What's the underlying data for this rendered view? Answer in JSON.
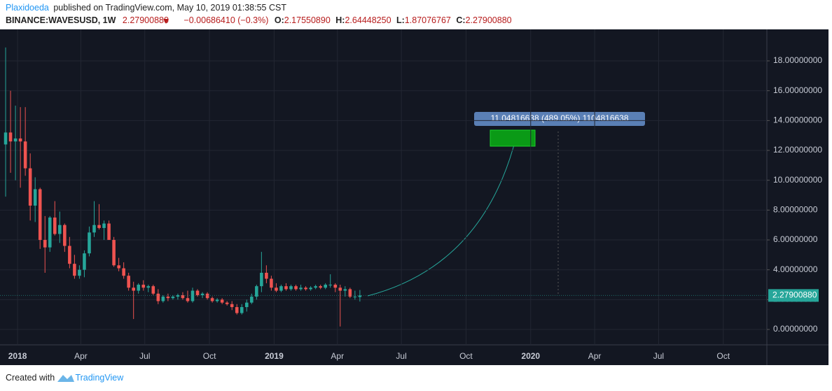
{
  "header": {
    "author": "Plaxidoeda",
    "published": "published on TradingView.com, May 10, 2019 01:38:55 CST",
    "symbol": "BINANCE:WAVESUSD, 1W",
    "price": "2.27900880",
    "change": "−0.00686410 (−0.3%)",
    "o_label": "O:",
    "o": "2.17550890",
    "h_label": "H:",
    "h": "2.64448250",
    "l_label": "L:",
    "l": "1.87076767",
    "c_label": "C:",
    "c": "2.27900880"
  },
  "footer": {
    "created": "Created with",
    "brand": "TradingView"
  },
  "chart_data": {
    "type": "candlestick",
    "up_color": "#26a69a",
    "down_color": "#ef5350",
    "grid": true,
    "xlim": [
      -25,
      1066
    ],
    "ylim": [
      -1.03,
      19.97
    ],
    "xticks": [
      {
        "value": 0,
        "label": "2018"
      },
      {
        "value": 90,
        "label": "Apr"
      },
      {
        "value": 181,
        "label": "Jul"
      },
      {
        "value": 273,
        "label": "Oct"
      },
      {
        "value": 365,
        "label": "2019"
      },
      {
        "value": 455,
        "label": "Apr"
      },
      {
        "value": 546,
        "label": "Jul"
      },
      {
        "value": 638,
        "label": "Oct"
      },
      {
        "value": 730,
        "label": "2020"
      },
      {
        "value": 821,
        "label": "Apr"
      },
      {
        "value": 912,
        "label": "Jul"
      },
      {
        "value": 1004,
        "label": "Oct"
      }
    ],
    "yticks": [
      {
        "value": 0,
        "label": "0.00000000"
      },
      {
        "value": 2,
        "label": "2.00000000"
      },
      {
        "value": 4,
        "label": "4.00000000"
      },
      {
        "value": 6,
        "label": "6.00000000"
      },
      {
        "value": 8,
        "label": "8.00000000"
      },
      {
        "value": 10,
        "label": "10.00000000"
      },
      {
        "value": 12,
        "label": "12.00000000"
      },
      {
        "value": 14,
        "label": "14.00000000"
      },
      {
        "value": 16,
        "label": "16.00000000"
      },
      {
        "value": 18,
        "label": "18.00000000"
      }
    ],
    "last_price": {
      "value": 2.2790088,
      "label": "2.27900880"
    },
    "projection_label": "11.04816638 (489.05%) 1104816638",
    "x": [
      -17,
      -10,
      -3,
      4,
      11,
      18,
      25,
      32,
      39,
      46,
      53,
      60,
      67,
      74,
      81,
      88,
      95,
      102,
      109,
      116,
      123,
      130,
      137,
      144,
      151,
      158,
      165,
      172,
      179,
      186,
      193,
      200,
      207,
      214,
      221,
      228,
      235,
      242,
      249,
      256,
      263,
      270,
      277,
      284,
      291,
      298,
      305,
      312,
      319,
      326,
      333,
      340,
      347,
      354,
      361,
      368,
      375,
      382,
      389,
      396,
      403,
      410,
      417,
      424,
      431,
      438,
      445,
      452,
      459,
      466,
      473,
      480,
      487
    ],
    "open": [
      12.4,
      13.2,
      12.6,
      12.8,
      12.6,
      10.8,
      8.3,
      9.4,
      6.0,
      5.5,
      7.5,
      6.4,
      7.0,
      5.6,
      4.4,
      3.6,
      4.0,
      5.1,
      6.5,
      7.0,
      6.8,
      7.1,
      6.0,
      4.3,
      4.1,
      3.6,
      2.8,
      2.6,
      3.0,
      2.8,
      2.9,
      2.4,
      1.9,
      2.2,
      2.1,
      2.2,
      2.3,
      2.1,
      1.9,
      2.6,
      2.3,
      2.4,
      2.1,
      1.9,
      2.0,
      1.8,
      1.7,
      1.5,
      1.1,
      1.5,
      1.8,
      2.2,
      2.9,
      3.8,
      3.4,
      2.8,
      2.6,
      2.9,
      2.7,
      2.9,
      2.7,
      2.8,
      2.7,
      2.8,
      2.9,
      2.8,
      3.0,
      3.0,
      2.8,
      2.6,
      2.7,
      2.2,
      2.1755089
    ],
    "high": [
      18.9,
      16.0,
      15.0,
      14.9,
      14.9,
      11.8,
      10.2,
      9.5,
      7.6,
      7.6,
      8.6,
      7.9,
      7.1,
      6.2,
      5.0,
      4.3,
      5.3,
      6.9,
      8.6,
      8.4,
      7.3,
      7.3,
      6.2,
      4.8,
      4.5,
      3.8,
      3.2,
      3.1,
      3.3,
      3.0,
      3.0,
      2.7,
      2.3,
      2.4,
      2.3,
      2.4,
      2.5,
      2.6,
      2.8,
      2.7,
      2.5,
      2.5,
      2.2,
      2.1,
      2.1,
      1.9,
      1.9,
      1.7,
      1.7,
      2.0,
      2.4,
      3.0,
      5.2,
      4.3,
      3.6,
      3.1,
      3.0,
      3.1,
      3.0,
      3.0,
      3.0,
      2.9,
      2.9,
      3.0,
      3.0,
      3.1,
      3.7,
      3.1,
      3.0,
      2.9,
      2.8,
      2.6,
      2.6444825
    ],
    "low": [
      8.9,
      10.5,
      10.0,
      9.5,
      10.3,
      7.3,
      7.2,
      5.4,
      3.8,
      5.2,
      6.3,
      5.8,
      5.2,
      4.1,
      3.4,
      3.4,
      3.5,
      4.9,
      6.2,
      6.7,
      6.0,
      6.0,
      4.2,
      3.9,
      3.4,
      2.6,
      0.7,
      2.4,
      2.6,
      2.5,
      2.3,
      1.7,
      1.8,
      1.9,
      2.0,
      2.0,
      2.0,
      1.8,
      1.8,
      2.2,
      2.1,
      2.0,
      1.8,
      1.8,
      1.7,
      1.6,
      1.3,
      1.0,
      1.0,
      1.2,
      1.7,
      2.0,
      2.5,
      3.1,
      2.6,
      2.5,
      2.5,
      2.6,
      2.6,
      2.6,
      2.6,
      2.6,
      2.6,
      2.7,
      2.7,
      2.7,
      2.8,
      2.5,
      0.2,
      2.2,
      2.1,
      2.0,
      1.87076767
    ],
    "close": [
      13.2,
      12.6,
      12.8,
      12.6,
      10.8,
      8.3,
      9.4,
      6.0,
      5.5,
      7.5,
      6.4,
      7.0,
      5.6,
      4.4,
      3.6,
      4.0,
      5.1,
      6.5,
      7.0,
      6.8,
      7.1,
      6.0,
      4.3,
      4.1,
      3.6,
      2.8,
      2.6,
      3.0,
      2.8,
      2.9,
      2.4,
      1.9,
      2.2,
      2.1,
      2.2,
      2.3,
      2.1,
      1.9,
      2.6,
      2.3,
      2.4,
      2.1,
      1.9,
      2.0,
      1.8,
      1.7,
      1.5,
      1.1,
      1.5,
      1.8,
      2.2,
      2.9,
      3.8,
      3.4,
      2.8,
      2.6,
      2.9,
      2.7,
      2.9,
      2.7,
      2.8,
      2.7,
      2.8,
      2.9,
      2.8,
      3.0,
      3.0,
      2.8,
      2.6,
      2.7,
      2.2,
      2.2,
      2.2790088
    ]
  }
}
